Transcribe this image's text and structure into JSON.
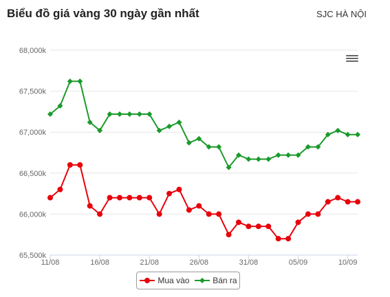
{
  "header": {
    "title": "Biểu đồ giá vàng 30 ngày gần nhất",
    "source": "SJC HÀ NỘI"
  },
  "menu": {
    "icon": "hamburger-menu-icon"
  },
  "chart_data": {
    "type": "line",
    "title": "Biểu đồ giá vàng 30 ngày gần nhất",
    "x_tick_labels": [
      "11/08",
      "16/08",
      "21/08",
      "26/08",
      "31/08",
      "05/09",
      "10/09"
    ],
    "x_tick_indices": [
      0,
      5,
      10,
      15,
      20,
      25,
      30
    ],
    "x": [
      "11/08",
      "12/08",
      "13/08",
      "14/08",
      "15/08",
      "16/08",
      "17/08",
      "18/08",
      "19/08",
      "20/08",
      "21/08",
      "22/08",
      "23/08",
      "24/08",
      "25/08",
      "26/08",
      "27/08",
      "28/08",
      "29/08",
      "30/08",
      "31/08",
      "01/09",
      "02/09",
      "03/09",
      "04/09",
      "05/09",
      "06/09",
      "07/09",
      "08/09",
      "09/09",
      "10/09",
      "11/09"
    ],
    "y_ticks": [
      65500,
      66000,
      66500,
      67000,
      67500,
      68000
    ],
    "y_tick_labels": [
      "65,500k",
      "66,000k",
      "66,500k",
      "67,000k",
      "67,500k",
      "68,000k"
    ],
    "ylim": [
      65500,
      68000
    ],
    "grid": true,
    "legend_position": "bottom",
    "series": [
      {
        "name": "Mua vào",
        "color": "#e8000b",
        "marker": "circle",
        "values": [
          66200,
          66300,
          66600,
          66600,
          66100,
          66000,
          66200,
          66200,
          66200,
          66200,
          66200,
          66000,
          66250,
          66300,
          66050,
          66100,
          66000,
          66000,
          65750,
          65900,
          65850,
          65850,
          65850,
          65700,
          65700,
          65900,
          66000,
          66000,
          66150,
          66200,
          66150,
          66150
        ]
      },
      {
        "name": "Bán ra",
        "color": "#1a9a2a",
        "marker": "diamond",
        "values": [
          67220,
          67320,
          67620,
          67620,
          67120,
          67020,
          67220,
          67220,
          67220,
          67220,
          67220,
          67020,
          67070,
          67120,
          66870,
          66920,
          66820,
          66820,
          66570,
          66720,
          66670,
          66670,
          66670,
          66720,
          66720,
          66720,
          66820,
          66820,
          66970,
          67020,
          66970,
          66970
        ]
      }
    ]
  }
}
